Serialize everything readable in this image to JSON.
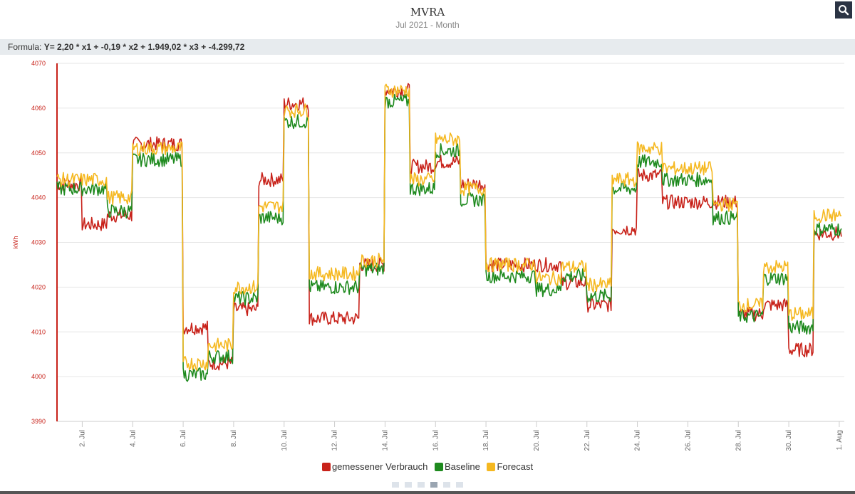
{
  "header": {
    "title": "MVRA",
    "subtitle": "Jul 2021 - Month"
  },
  "toolbar": {
    "search_icon": "search-icon"
  },
  "formula": {
    "label": "Formula:",
    "value": "Y= 2,20 * x1 + -0,19 * x2 + 1.949,02 * x3 + -4.299,72"
  },
  "pager": {
    "pages": 6,
    "active": 3
  },
  "chart_data": {
    "type": "line",
    "title": "MVRA",
    "subtitle": "Jul 2021 - Month",
    "ylabel": "kWh",
    "ylim": [
      3990,
      4070
    ],
    "yticks": [
      "3990",
      "4000",
      "4010",
      "4020",
      "4030",
      "4040",
      "4050",
      "4060",
      "4070"
    ],
    "xlim": [
      1,
      32.2
    ],
    "xticks": [
      {
        "x": 2,
        "label": "2. Jul"
      },
      {
        "x": 4,
        "label": "4. Jul"
      },
      {
        "x": 6,
        "label": "6. Jul"
      },
      {
        "x": 8,
        "label": "8. Jul"
      },
      {
        "x": 10,
        "label": "10. Jul"
      },
      {
        "x": 12,
        "label": "12. Jul"
      },
      {
        "x": 14,
        "label": "14. Jul"
      },
      {
        "x": 16,
        "label": "16. Jul"
      },
      {
        "x": 18,
        "label": "18. Jul"
      },
      {
        "x": 20,
        "label": "20. Jul"
      },
      {
        "x": 22,
        "label": "22. Jul"
      },
      {
        "x": 24,
        "label": "24. Jul"
      },
      {
        "x": 26,
        "label": "26. Jul"
      },
      {
        "x": 28,
        "label": "28. Jul"
      },
      {
        "x": 30,
        "label": "30. Jul"
      },
      {
        "x": 32,
        "label": "1. Aug"
      }
    ],
    "noise": 1.6,
    "series": [
      {
        "name": "gemessener Verbrauch",
        "color": "#c8221a",
        "steps": [
          {
            "start": 1,
            "end": 2,
            "value": 4043
          },
          {
            "start": 2,
            "end": 3,
            "value": 4034
          },
          {
            "start": 3,
            "end": 4,
            "value": 4036
          },
          {
            "start": 4,
            "end": 6,
            "value": 4052
          },
          {
            "start": 6,
            "end": 7,
            "value": 4011
          },
          {
            "start": 7,
            "end": 8,
            "value": 4003
          },
          {
            "start": 8,
            "end": 9,
            "value": 4015
          },
          {
            "start": 9,
            "end": 10,
            "value": 4044
          },
          {
            "start": 10,
            "end": 11,
            "value": 4061
          },
          {
            "start": 11,
            "end": 13,
            "value": 4013
          },
          {
            "start": 13,
            "end": 14,
            "value": 4025
          },
          {
            "start": 14,
            "end": 15,
            "value": 4064
          },
          {
            "start": 15,
            "end": 16,
            "value": 4047
          },
          {
            "start": 16,
            "end": 17,
            "value": 4048
          },
          {
            "start": 17,
            "end": 18,
            "value": 4043
          },
          {
            "start": 18,
            "end": 21,
            "value": 4025
          },
          {
            "start": 21,
            "end": 22,
            "value": 4021
          },
          {
            "start": 22,
            "end": 23,
            "value": 4016
          },
          {
            "start": 23,
            "end": 24,
            "value": 4033
          },
          {
            "start": 24,
            "end": 25,
            "value": 4045
          },
          {
            "start": 25,
            "end": 27,
            "value": 4039
          },
          {
            "start": 27,
            "end": 28,
            "value": 4039
          },
          {
            "start": 28,
            "end": 29,
            "value": 4014
          },
          {
            "start": 29,
            "end": 30,
            "value": 4016
          },
          {
            "start": 30,
            "end": 31,
            "value": 4006
          },
          {
            "start": 31,
            "end": 32.1,
            "value": 4032
          }
        ]
      },
      {
        "name": "Baseline",
        "color": "#1e8a1e",
        "steps": [
          {
            "start": 1,
            "end": 3,
            "value": 4042
          },
          {
            "start": 3,
            "end": 4,
            "value": 4037
          },
          {
            "start": 4,
            "end": 6,
            "value": 4048.5
          },
          {
            "start": 6,
            "end": 7,
            "value": 4000.5
          },
          {
            "start": 7,
            "end": 8,
            "value": 4004.5
          },
          {
            "start": 8,
            "end": 9,
            "value": 4017.5
          },
          {
            "start": 9,
            "end": 10,
            "value": 4035.5
          },
          {
            "start": 10,
            "end": 11,
            "value": 4057
          },
          {
            "start": 11,
            "end": 13,
            "value": 4020
          },
          {
            "start": 13,
            "end": 14,
            "value": 4024
          },
          {
            "start": 14,
            "end": 15,
            "value": 4061.5
          },
          {
            "start": 15,
            "end": 16,
            "value": 4042
          },
          {
            "start": 16,
            "end": 17,
            "value": 4050.5
          },
          {
            "start": 17,
            "end": 18,
            "value": 4039.5
          },
          {
            "start": 18,
            "end": 20,
            "value": 4022.5
          },
          {
            "start": 20,
            "end": 21,
            "value": 4019.5
          },
          {
            "start": 21,
            "end": 22,
            "value": 4022.5
          },
          {
            "start": 22,
            "end": 23,
            "value": 4018
          },
          {
            "start": 23,
            "end": 24,
            "value": 4042
          },
          {
            "start": 24,
            "end": 25,
            "value": 4048
          },
          {
            "start": 25,
            "end": 27,
            "value": 4044
          },
          {
            "start": 27,
            "end": 28,
            "value": 4035.5
          },
          {
            "start": 28,
            "end": 29,
            "value": 4013.5
          },
          {
            "start": 29,
            "end": 30,
            "value": 4022
          },
          {
            "start": 30,
            "end": 31,
            "value": 4011
          },
          {
            "start": 31,
            "end": 32.1,
            "value": 4033
          }
        ]
      },
      {
        "name": "Forecast",
        "color": "#f5b820",
        "steps": [
          {
            "start": 1,
            "end": 3,
            "value": 4044
          },
          {
            "start": 3,
            "end": 4,
            "value": 4040
          },
          {
            "start": 4,
            "end": 6,
            "value": 4051
          },
          {
            "start": 6,
            "end": 7,
            "value": 4003
          },
          {
            "start": 7,
            "end": 8,
            "value": 4007
          },
          {
            "start": 8,
            "end": 9,
            "value": 4020
          },
          {
            "start": 9,
            "end": 10,
            "value": 4038
          },
          {
            "start": 10,
            "end": 11,
            "value": 4059.5
          },
          {
            "start": 11,
            "end": 13,
            "value": 4023
          },
          {
            "start": 13,
            "end": 14,
            "value": 4026
          },
          {
            "start": 14,
            "end": 15,
            "value": 4064
          },
          {
            "start": 15,
            "end": 16,
            "value": 4044
          },
          {
            "start": 16,
            "end": 17,
            "value": 4053
          },
          {
            "start": 17,
            "end": 18,
            "value": 4042
          },
          {
            "start": 18,
            "end": 20,
            "value": 4025
          },
          {
            "start": 20,
            "end": 21,
            "value": 4022
          },
          {
            "start": 21,
            "end": 22,
            "value": 4024.5
          },
          {
            "start": 22,
            "end": 23,
            "value": 4020.5
          },
          {
            "start": 23,
            "end": 24,
            "value": 4044
          },
          {
            "start": 24,
            "end": 25,
            "value": 4051
          },
          {
            "start": 25,
            "end": 27,
            "value": 4046.5
          },
          {
            "start": 27,
            "end": 28,
            "value": 4038.5
          },
          {
            "start": 28,
            "end": 29,
            "value": 4016
          },
          {
            "start": 29,
            "end": 30,
            "value": 4024.5
          },
          {
            "start": 30,
            "end": 31,
            "value": 4014
          },
          {
            "start": 31,
            "end": 32.1,
            "value": 4036
          }
        ]
      }
    ]
  }
}
